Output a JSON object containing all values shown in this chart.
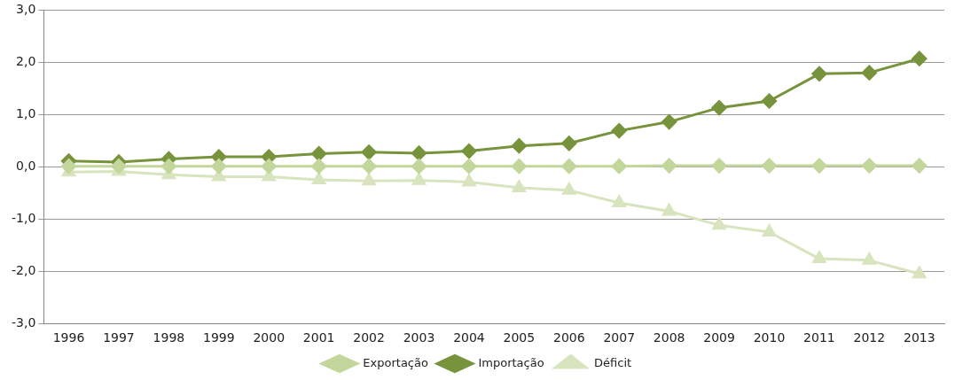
{
  "chart_data": {
    "type": "line",
    "categories": [
      "1996",
      "1997",
      "1998",
      "1999",
      "2000",
      "2001",
      "2002",
      "2003",
      "2004",
      "2005",
      "2006",
      "2007",
      "2008",
      "2009",
      "2010",
      "2011",
      "2012",
      "2013"
    ],
    "series": [
      {
        "name": "Exportação",
        "color": "#c3d69b",
        "marker": "diamond",
        "values": [
          0.01,
          0.01,
          0.01,
          0.01,
          0.01,
          0.01,
          0.01,
          0.01,
          0.01,
          0.01,
          0.01,
          0.01,
          0.02,
          0.02,
          0.02,
          0.02,
          0.02,
          0.02
        ]
      },
      {
        "name": "Importação",
        "color": "#77933c",
        "marker": "diamond",
        "values": [
          0.11,
          0.09,
          0.15,
          0.19,
          0.19,
          0.25,
          0.28,
          0.26,
          0.3,
          0.4,
          0.45,
          0.69,
          0.86,
          1.13,
          1.26,
          1.78,
          1.8,
          2.07
        ]
      },
      {
        "name": "Déficit",
        "color": "#d7e4bd",
        "marker": "triangle",
        "values": [
          -0.1,
          -0.09,
          -0.15,
          -0.19,
          -0.19,
          -0.25,
          -0.27,
          -0.26,
          -0.29,
          -0.4,
          -0.45,
          -0.69,
          -0.85,
          -1.12,
          -1.25,
          -1.76,
          -1.79,
          -2.05
        ]
      }
    ],
    "ylim": [
      -3,
      3
    ],
    "yticks": [
      {
        "value": -3,
        "label": "-3,0"
      },
      {
        "value": -2,
        "label": "-2,0"
      },
      {
        "value": -1,
        "label": "-1,0"
      },
      {
        "value": 0,
        "label": "0,0"
      },
      {
        "value": 1,
        "label": "1,0"
      },
      {
        "value": 2,
        "label": "2,0"
      },
      {
        "value": 3,
        "label": "3,0"
      }
    ],
    "grid": "y",
    "legend": "bottom"
  }
}
